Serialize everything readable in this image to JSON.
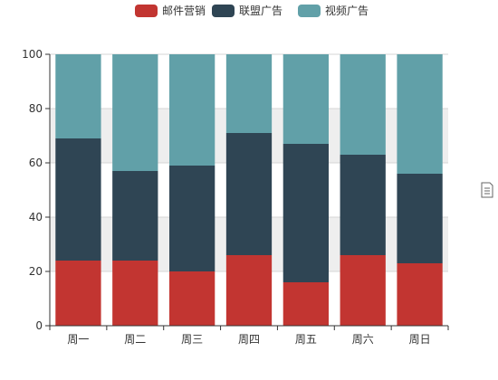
{
  "chart_data": {
    "type": "bar",
    "stacked": true,
    "categories": [
      "周一",
      "周二",
      "周三",
      "周四",
      "周五",
      "周六",
      "周日"
    ],
    "series": [
      {
        "name": "邮件营销",
        "color": "#c23531",
        "values": [
          24,
          24,
          20,
          26,
          16,
          26,
          23
        ]
      },
      {
        "name": "联盟广告",
        "color": "#2f4554",
        "values": [
          45,
          33,
          39,
          45,
          51,
          37,
          33
        ]
      },
      {
        "name": "视频广告",
        "color": "#61a0a8",
        "values": [
          31,
          43,
          41,
          29,
          33,
          37,
          44
        ]
      }
    ],
    "ylim": [
      0,
      100
    ],
    "yticks": [
      "0",
      "20",
      "40",
      "60",
      "80",
      "100"
    ],
    "ytick_values": [
      0,
      20,
      40,
      60,
      80,
      100
    ],
    "grid": true,
    "legend_position": "top-center",
    "title": "",
    "xlabel": "",
    "ylabel": ""
  },
  "toolbox": {
    "icon": "data-view-icon"
  }
}
